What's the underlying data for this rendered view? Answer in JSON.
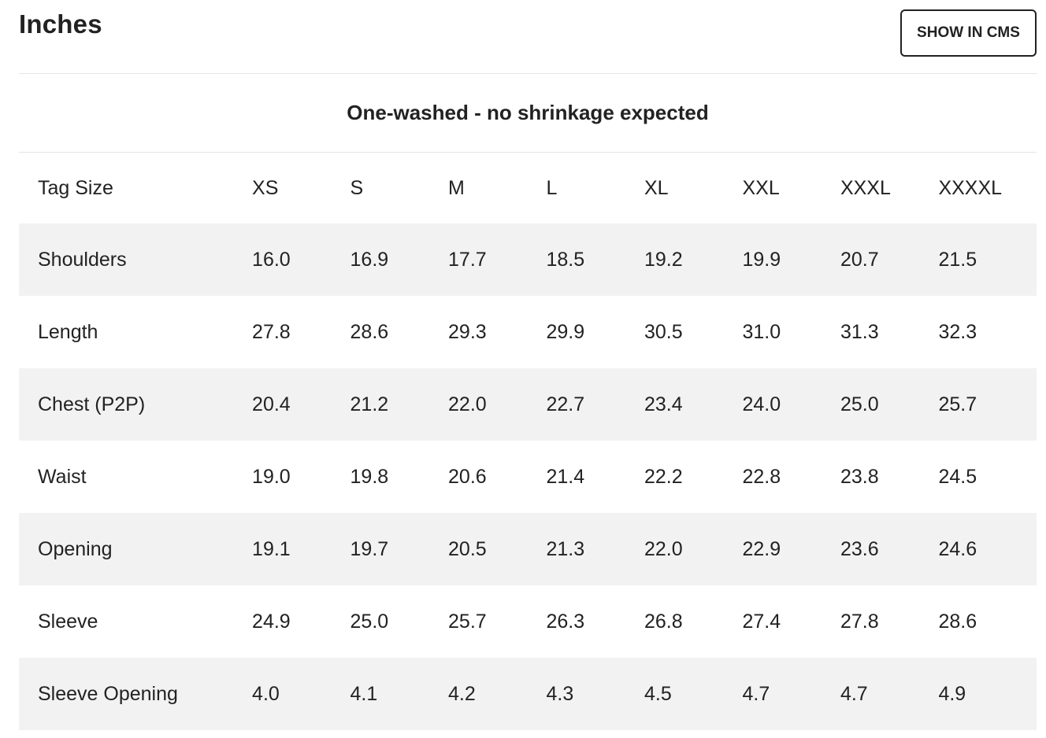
{
  "header": {
    "title": "Inches",
    "cms_button_label": "SHOW IN CMS"
  },
  "caption": "One-washed - no shrinkage expected",
  "table": {
    "header_label": "Tag Size",
    "sizes": [
      "XS",
      "S",
      "M",
      "L",
      "XL",
      "XXL",
      "XXXL",
      "XXXXL"
    ],
    "rows": [
      {
        "label": "Shoulders",
        "values": [
          "16.0",
          "16.9",
          "17.7",
          "18.5",
          "19.2",
          "19.9",
          "20.7",
          "21.5"
        ]
      },
      {
        "label": "Length",
        "values": [
          "27.8",
          "28.6",
          "29.3",
          "29.9",
          "30.5",
          "31.0",
          "31.3",
          "32.3"
        ]
      },
      {
        "label": "Chest (P2P)",
        "values": [
          "20.4",
          "21.2",
          "22.0",
          "22.7",
          "23.4",
          "24.0",
          "25.0",
          "25.7"
        ]
      },
      {
        "label": "Waist",
        "values": [
          "19.0",
          "19.8",
          "20.6",
          "21.4",
          "22.2",
          "22.8",
          "23.8",
          "24.5"
        ]
      },
      {
        "label": "Opening",
        "values": [
          "19.1",
          "19.7",
          "20.5",
          "21.3",
          "22.0",
          "22.9",
          "23.6",
          "24.6"
        ]
      },
      {
        "label": "Sleeve",
        "values": [
          "24.9",
          "25.0",
          "25.7",
          "26.3",
          "26.8",
          "27.4",
          "27.8",
          "28.6"
        ]
      },
      {
        "label": "Sleeve Opening",
        "values": [
          "4.0",
          "4.1",
          "4.2",
          "4.3",
          "4.5",
          "4.7",
          "4.7",
          "4.9"
        ]
      }
    ]
  },
  "colors": {
    "text": "#222222",
    "row_shade": "#f2f2f2",
    "divider": "#e4e4e4"
  }
}
